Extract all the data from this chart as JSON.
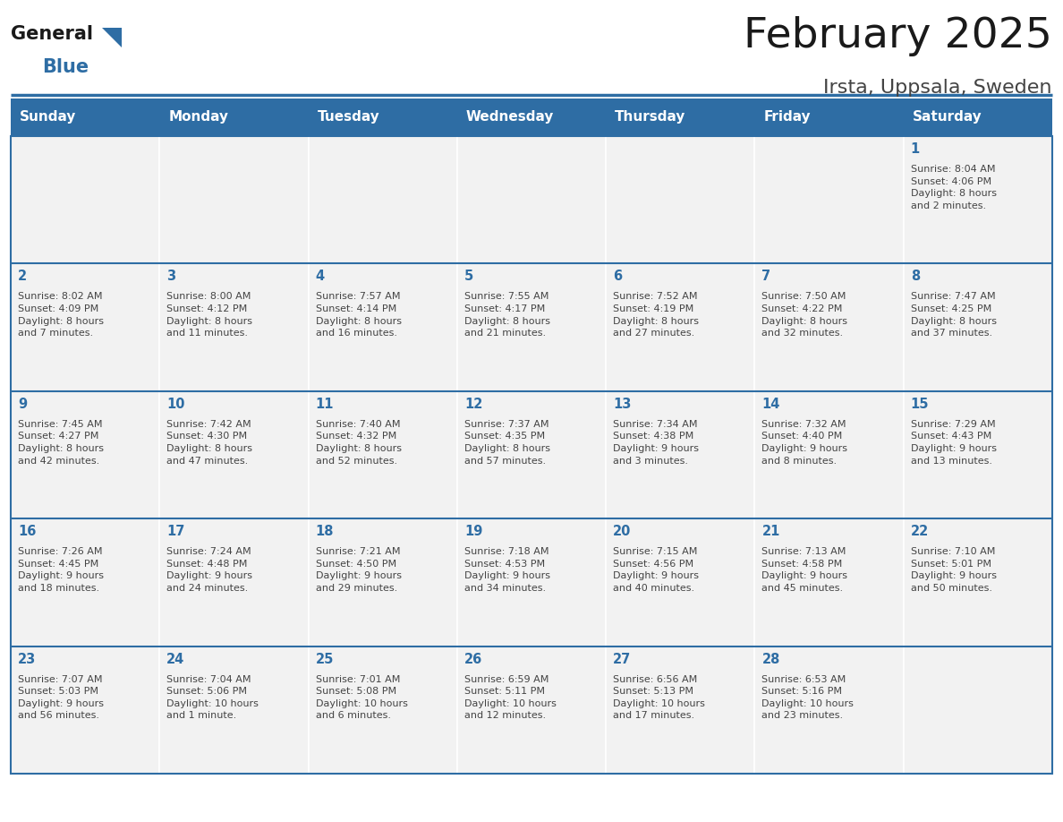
{
  "title": "February 2025",
  "subtitle": "Irsta, Uppsala, Sweden",
  "header_bg": "#2E6DA4",
  "header_text_color": "#FFFFFF",
  "cell_bg": "#F2F2F2",
  "day_headers": [
    "Sunday",
    "Monday",
    "Tuesday",
    "Wednesday",
    "Thursday",
    "Friday",
    "Saturday"
  ],
  "title_color": "#1a1a1a",
  "subtitle_color": "#444444",
  "day_num_color": "#2E6DA4",
  "cell_text_color": "#444444",
  "border_color": "#2E6DA4",
  "logo_general_color": "#1a1a1a",
  "logo_blue_color": "#2E6DA4",
  "weeks": [
    [
      {
        "day": null,
        "info": ""
      },
      {
        "day": null,
        "info": ""
      },
      {
        "day": null,
        "info": ""
      },
      {
        "day": null,
        "info": ""
      },
      {
        "day": null,
        "info": ""
      },
      {
        "day": null,
        "info": ""
      },
      {
        "day": 1,
        "info": "Sunrise: 8:04 AM\nSunset: 4:06 PM\nDaylight: 8 hours\nand 2 minutes."
      }
    ],
    [
      {
        "day": 2,
        "info": "Sunrise: 8:02 AM\nSunset: 4:09 PM\nDaylight: 8 hours\nand 7 minutes."
      },
      {
        "day": 3,
        "info": "Sunrise: 8:00 AM\nSunset: 4:12 PM\nDaylight: 8 hours\nand 11 minutes."
      },
      {
        "day": 4,
        "info": "Sunrise: 7:57 AM\nSunset: 4:14 PM\nDaylight: 8 hours\nand 16 minutes."
      },
      {
        "day": 5,
        "info": "Sunrise: 7:55 AM\nSunset: 4:17 PM\nDaylight: 8 hours\nand 21 minutes."
      },
      {
        "day": 6,
        "info": "Sunrise: 7:52 AM\nSunset: 4:19 PM\nDaylight: 8 hours\nand 27 minutes."
      },
      {
        "day": 7,
        "info": "Sunrise: 7:50 AM\nSunset: 4:22 PM\nDaylight: 8 hours\nand 32 minutes."
      },
      {
        "day": 8,
        "info": "Sunrise: 7:47 AM\nSunset: 4:25 PM\nDaylight: 8 hours\nand 37 minutes."
      }
    ],
    [
      {
        "day": 9,
        "info": "Sunrise: 7:45 AM\nSunset: 4:27 PM\nDaylight: 8 hours\nand 42 minutes."
      },
      {
        "day": 10,
        "info": "Sunrise: 7:42 AM\nSunset: 4:30 PM\nDaylight: 8 hours\nand 47 minutes."
      },
      {
        "day": 11,
        "info": "Sunrise: 7:40 AM\nSunset: 4:32 PM\nDaylight: 8 hours\nand 52 minutes."
      },
      {
        "day": 12,
        "info": "Sunrise: 7:37 AM\nSunset: 4:35 PM\nDaylight: 8 hours\nand 57 minutes."
      },
      {
        "day": 13,
        "info": "Sunrise: 7:34 AM\nSunset: 4:38 PM\nDaylight: 9 hours\nand 3 minutes."
      },
      {
        "day": 14,
        "info": "Sunrise: 7:32 AM\nSunset: 4:40 PM\nDaylight: 9 hours\nand 8 minutes."
      },
      {
        "day": 15,
        "info": "Sunrise: 7:29 AM\nSunset: 4:43 PM\nDaylight: 9 hours\nand 13 minutes."
      }
    ],
    [
      {
        "day": 16,
        "info": "Sunrise: 7:26 AM\nSunset: 4:45 PM\nDaylight: 9 hours\nand 18 minutes."
      },
      {
        "day": 17,
        "info": "Sunrise: 7:24 AM\nSunset: 4:48 PM\nDaylight: 9 hours\nand 24 minutes."
      },
      {
        "day": 18,
        "info": "Sunrise: 7:21 AM\nSunset: 4:50 PM\nDaylight: 9 hours\nand 29 minutes."
      },
      {
        "day": 19,
        "info": "Sunrise: 7:18 AM\nSunset: 4:53 PM\nDaylight: 9 hours\nand 34 minutes."
      },
      {
        "day": 20,
        "info": "Sunrise: 7:15 AM\nSunset: 4:56 PM\nDaylight: 9 hours\nand 40 minutes."
      },
      {
        "day": 21,
        "info": "Sunrise: 7:13 AM\nSunset: 4:58 PM\nDaylight: 9 hours\nand 45 minutes."
      },
      {
        "day": 22,
        "info": "Sunrise: 7:10 AM\nSunset: 5:01 PM\nDaylight: 9 hours\nand 50 minutes."
      }
    ],
    [
      {
        "day": 23,
        "info": "Sunrise: 7:07 AM\nSunset: 5:03 PM\nDaylight: 9 hours\nand 56 minutes."
      },
      {
        "day": 24,
        "info": "Sunrise: 7:04 AM\nSunset: 5:06 PM\nDaylight: 10 hours\nand 1 minute."
      },
      {
        "day": 25,
        "info": "Sunrise: 7:01 AM\nSunset: 5:08 PM\nDaylight: 10 hours\nand 6 minutes."
      },
      {
        "day": 26,
        "info": "Sunrise: 6:59 AM\nSunset: 5:11 PM\nDaylight: 10 hours\nand 12 minutes."
      },
      {
        "day": 27,
        "info": "Sunrise: 6:56 AM\nSunset: 5:13 PM\nDaylight: 10 hours\nand 17 minutes."
      },
      {
        "day": 28,
        "info": "Sunrise: 6:53 AM\nSunset: 5:16 PM\nDaylight: 10 hours\nand 23 minutes."
      },
      {
        "day": null,
        "info": ""
      }
    ]
  ]
}
